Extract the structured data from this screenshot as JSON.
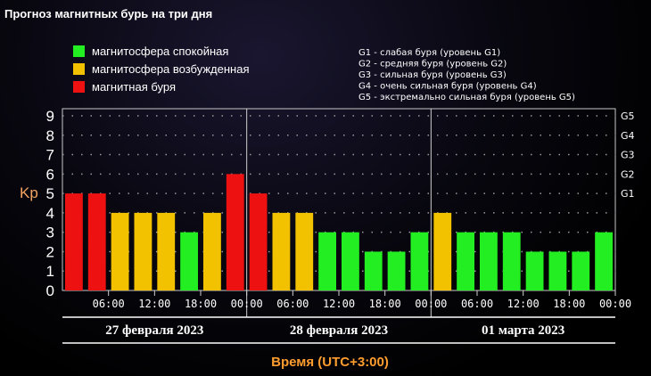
{
  "chart_data": {
    "type": "bar",
    "title": "Прогноз магнитных бурь на три дня",
    "ylabel": "Kp",
    "xlabel": "Время (UTC+3:00)",
    "ylim": [
      0,
      9
    ],
    "yticks": [
      0,
      1,
      2,
      3,
      4,
      5,
      6,
      7,
      8,
      9
    ],
    "storm_levels": [
      {
        "kp": 5,
        "label": "G1"
      },
      {
        "kp": 6,
        "label": "G2"
      },
      {
        "kp": 7,
        "label": "G3"
      },
      {
        "kp": 8,
        "label": "G4"
      },
      {
        "kp": 9,
        "label": "G5"
      }
    ],
    "time_ticks": [
      "06:00",
      "12:00",
      "18:00",
      "00:00",
      "06:00",
      "12:00",
      "18:00",
      "00:00",
      "06:00",
      "12:00",
      "18:00",
      "00:00"
    ],
    "days": [
      "27 февраля 2023",
      "28 февраля 2023",
      "01 марта 2023"
    ],
    "values": [
      5,
      5,
      4,
      4,
      4,
      3,
      4,
      6,
      5,
      4,
      4,
      3,
      3,
      2,
      2,
      3,
      4,
      3,
      3,
      3,
      2,
      2,
      2,
      3
    ],
    "legend": [
      {
        "label": "магнитосфера спокойная",
        "color": "#22ee22"
      },
      {
        "label": "магнитосфера возбужденная",
        "color": "#f2c200"
      },
      {
        "label": "магнитная буря",
        "color": "#ee1111"
      }
    ],
    "storm_legend": [
      "G1 - слабая буря (уровень G1)",
      "G2 - средняя буря (уровень G2)",
      "G3 - сильная буря (уровень G3)",
      "G4 - очень сильная буря (уровень G4)",
      "G5 - экстремально сильная буря (уровень G5)"
    ],
    "grid": "dotted",
    "legend_position": "top"
  }
}
